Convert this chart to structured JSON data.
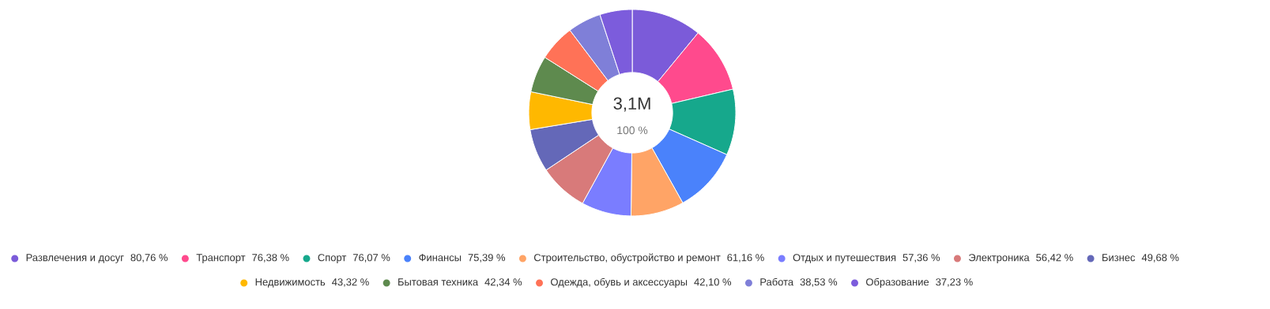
{
  "chart_data": {
    "type": "donut",
    "categories": [
      "Развлечения и досуг",
      "Транспорт",
      "Спорт",
      "Финансы",
      "Строительство, обустройство и ремонт",
      "Отдых и путешествия",
      "Электроника",
      "Бизнес",
      "Недвижимость",
      "Бытовая техника",
      "Одежда, обувь и аксессуары",
      "Работа",
      "Образование"
    ],
    "values": [
      80.76,
      76.38,
      76.07,
      75.39,
      61.16,
      57.36,
      56.42,
      49.68,
      43.32,
      42.34,
      42.1,
      38.53,
      37.23
    ],
    "value_labels": [
      "80,76 %",
      "76,38 %",
      "76,07 %",
      "75,39 %",
      "61,16 %",
      "57,36 %",
      "56,42 %",
      "49,68 %",
      "43,32 %",
      "42,34 %",
      "42,10 %",
      "38,53 %",
      "37,23 %"
    ],
    "colors": [
      "#7b5bd9",
      "#ff4a8d",
      "#16a88c",
      "#4a82fb",
      "#ffa466",
      "#7a7dff",
      "#d87a7a",
      "#6468b8",
      "#ffb800",
      "#5e8a4e",
      "#ff7257",
      "#7f7fd8",
      "#7c5cdc"
    ],
    "annotations": [
      "3,1M",
      "100 %"
    ],
    "legend": "bottom"
  }
}
